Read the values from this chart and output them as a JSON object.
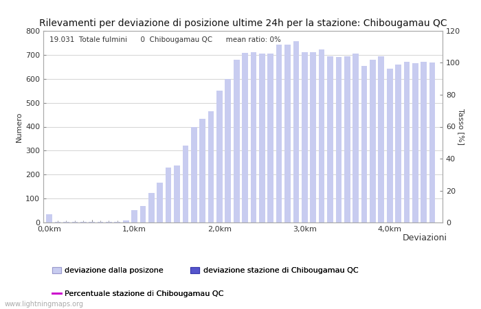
{
  "title": "Rilevamenti per deviazione di posizione ultime 24h per la stazione: Chibougamau QC",
  "ylabel_left": "Numero",
  "ylabel_right": "Tasso [%]",
  "xlabel": "Deviazioni",
  "info_line": "19.031  Totale fulmini      0  Chibougamau QC      mean ratio: 0%",
  "watermark": "www.lightningmaps.org",
  "bar_color_light": "#c8ccf0",
  "bar_color_dark": "#5555cc",
  "line_color": "#cc00cc",
  "background_color": "#ffffff",
  "plot_bg": "#ffffff",
  "ylim_left": [
    0,
    800
  ],
  "ylim_right": [
    0,
    120
  ],
  "bar_values": [
    35,
    3,
    2,
    2,
    2,
    2,
    2,
    2,
    2,
    10,
    52,
    70,
    122,
    165,
    228,
    238,
    322,
    400,
    432,
    465,
    550,
    598,
    680,
    708,
    712,
    705,
    706,
    742,
    743,
    756,
    710,
    712,
    723,
    695,
    690,
    693,
    705,
    655,
    680,
    695,
    643,
    660,
    670,
    665,
    672,
    668
  ],
  "x_positions": [
    0.0,
    0.1,
    0.2,
    0.3,
    0.4,
    0.5,
    0.6,
    0.7,
    0.8,
    0.9,
    1.0,
    1.1,
    1.2,
    1.3,
    1.4,
    1.5,
    1.6,
    1.7,
    1.8,
    1.9,
    2.0,
    2.1,
    2.2,
    2.3,
    2.4,
    2.5,
    2.6,
    2.7,
    2.8,
    2.9,
    3.0,
    3.1,
    3.2,
    3.3,
    3.4,
    3.5,
    3.6,
    3.7,
    3.8,
    3.9,
    4.0,
    4.1,
    4.2,
    4.3,
    4.4,
    4.5
  ],
  "xtick_positions": [
    0.0,
    0.5,
    1.0,
    1.5,
    2.0,
    2.5,
    3.0,
    3.5,
    4.0,
    4.5
  ],
  "xtick_labels": [
    "0,0km",
    "",
    "1,0km",
    "",
    "2,0km",
    "",
    "3,0km",
    "",
    "4,0km",
    ""
  ],
  "yticks_left": [
    0,
    100,
    200,
    300,
    400,
    500,
    600,
    700,
    800
  ],
  "yticks_right": [
    0,
    20,
    40,
    60,
    80,
    100,
    120
  ],
  "legend1_label": "deviazione dalla posizone",
  "legend2_label": "deviazione stazione di Chibougamau QC",
  "legend3_label": "Percentuale stazione di Chibougamau QC",
  "title_fontsize": 10,
  "axis_fontsize": 8,
  "tick_fontsize": 8,
  "info_fontsize": 7.5,
  "legend_fontsize": 8,
  "watermark_fontsize": 7
}
